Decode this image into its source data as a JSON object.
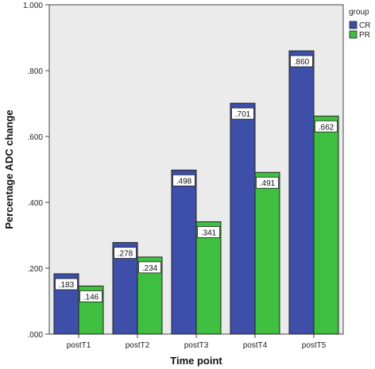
{
  "chart_data": {
    "type": "bar",
    "categories": [
      "postT1",
      "postT2",
      "postT3",
      "postT4",
      "postT5"
    ],
    "series": [
      {
        "name": "CR",
        "values": [
          0.183,
          0.278,
          0.498,
          0.701,
          0.86
        ],
        "labels": [
          ".183",
          ".278",
          ".498",
          ".701",
          ".860"
        ],
        "color": "#3D4FA8"
      },
      {
        "name": "PR",
        "values": [
          0.146,
          0.234,
          0.341,
          0.491,
          0.662
        ],
        "labels": [
          ".146",
          ".234",
          ".341",
          ".491",
          ".662"
        ],
        "color": "#3FBF3F"
      }
    ],
    "xlabel": "Time point",
    "ylabel": "Percentage ADC change",
    "ylim": [
      0,
      1.0
    ],
    "yticks": [
      0,
      0.2,
      0.4,
      0.6,
      0.8,
      1.0
    ],
    "ytick_labels": [
      ".000",
      ".200",
      ".400",
      ".600",
      ".800",
      "1.000"
    ],
    "legend_title": "group",
    "legend_position": "top-right",
    "grid": false,
    "plot_background": "#EBEBEB"
  }
}
